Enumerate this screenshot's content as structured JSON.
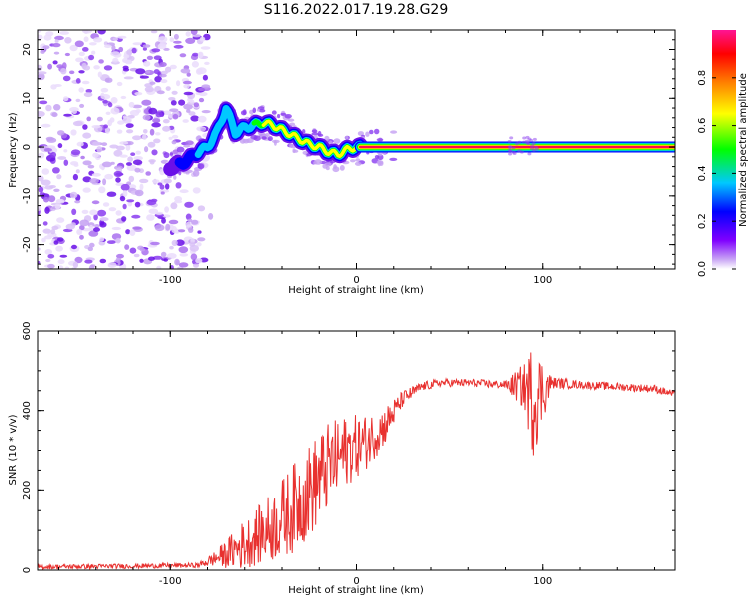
{
  "figure_title": "S116.2022.017.19.28.G29",
  "chart_data": [
    {
      "type": "heatmap",
      "title": "S116.2022.017.19.28.G29",
      "xlabel": "Height of straight line (km)",
      "ylabel": "Frequency (Hz)",
      "xlim": [
        -171,
        171
      ],
      "ylim": [
        -25,
        24
      ],
      "x_ticks": [
        -100,
        0,
        100
      ],
      "x_tick_labels": [
        "-100",
        "0",
        "100"
      ],
      "y_ticks": [
        -20,
        -10,
        0,
        10,
        20
      ],
      "y_tick_labels": [
        "-20",
        "-10",
        "0",
        "10",
        "20"
      ],
      "colorbar": {
        "label": "Normalized spectral amplitude",
        "range": [
          0,
          1
        ],
        "ticks": [
          0,
          0.2,
          0.4,
          0.6,
          0.8
        ],
        "tick_labels": [
          "0.0",
          "0.2",
          "0.4",
          "0.6",
          "0.8"
        ],
        "colors": [
          "#ffffff",
          "#c9a6f5",
          "#8000ff",
          "#0000ff",
          "#00c8ff",
          "#00ff00",
          "#ffff00",
          "#ff8000",
          "#ff0000",
          "#ff1493"
        ]
      },
      "ridge": {
        "description_x": [
          -100,
          -95,
          -90,
          -85,
          -80,
          -75,
          -72,
          -70,
          -65,
          -60,
          -55,
          -50,
          -45,
          -40,
          -35,
          -30,
          -25,
          -20,
          -15,
          -10,
          -5,
          0,
          20,
          50,
          80,
          100,
          170
        ],
        "frequency_hz": [
          -4,
          -3.5,
          -2.5,
          -1,
          0,
          3,
          6,
          8,
          3,
          4,
          4.5,
          5,
          4.5,
          3.5,
          2.5,
          1.5,
          0.5,
          0,
          -1,
          -1.5,
          -0.5,
          0,
          0,
          0,
          0,
          0,
          0
        ]
      },
      "noise_region_x": [
        -171,
        -80
      ]
    },
    {
      "type": "line",
      "title": "",
      "xlabel": "Height of straight line (km)",
      "ylabel": "SNR (10 * v/v)",
      "xlim": [
        -171,
        171
      ],
      "ylim": [
        0,
        600
      ],
      "x_ticks": [
        -100,
        0,
        100
      ],
      "x_tick_labels": [
        "-100",
        "0",
        "100"
      ],
      "y_ticks": [
        0,
        200,
        400,
        600
      ],
      "y_tick_labels": [
        "0",
        "200",
        "400",
        "600"
      ],
      "line_color": "#e8312f",
      "envelope": {
        "x": [
          -171,
          -120,
          -85,
          -78,
          -70,
          -62,
          -55,
          -45,
          -35,
          -25,
          -15,
          -5,
          0,
          5,
          15,
          25,
          35,
          45,
          60,
          80,
          90,
          95,
          100,
          105,
          120,
          140,
          160,
          171
        ],
        "mean": [
          8,
          10,
          12,
          25,
          40,
          60,
          80,
          110,
          150,
          200,
          260,
          300,
          310,
          320,
          360,
          430,
          460,
          470,
          470,
          465,
          460,
          430,
          450,
          470,
          465,
          460,
          455,
          440
        ],
        "spread": [
          6,
          6,
          6,
          15,
          35,
          60,
          70,
          90,
          110,
          120,
          110,
          90,
          80,
          70,
          50,
          20,
          12,
          10,
          10,
          10,
          60,
          150,
          80,
          15,
          10,
          10,
          10,
          10
        ]
      }
    }
  ]
}
